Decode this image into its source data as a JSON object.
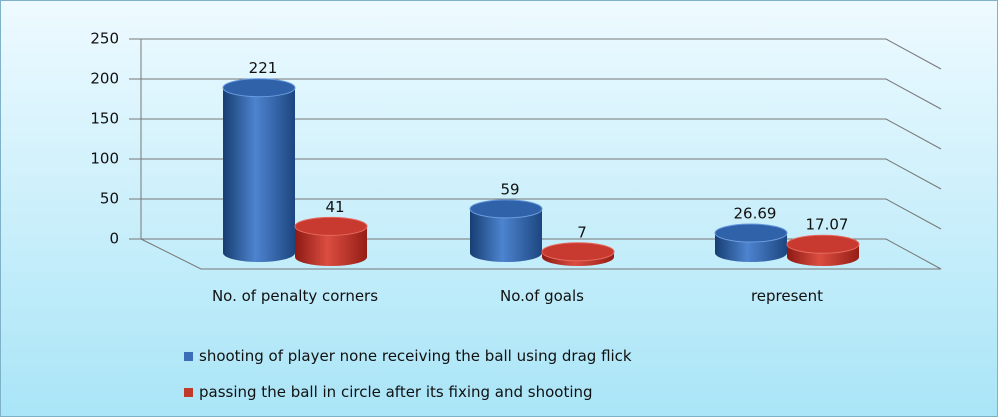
{
  "chart_data": {
    "type": "bar",
    "categories": [
      "No. of  penalty corners",
      "No.of goals",
      "represent"
    ],
    "series": [
      {
        "name": "shooting of player none receiving the ball using drag flick",
        "color": "#3a6fb8",
        "values": [
          221,
          59,
          26.69
        ]
      },
      {
        "name": "passing the ball in circle after its fixing and shooting",
        "color": "#c0392b",
        "values": [
          41,
          7,
          17.07
        ]
      }
    ],
    "ylim": [
      0,
      250
    ],
    "yticks": [
      0,
      50,
      100,
      150,
      200,
      250
    ],
    "grid": true,
    "legend": "bottom"
  }
}
